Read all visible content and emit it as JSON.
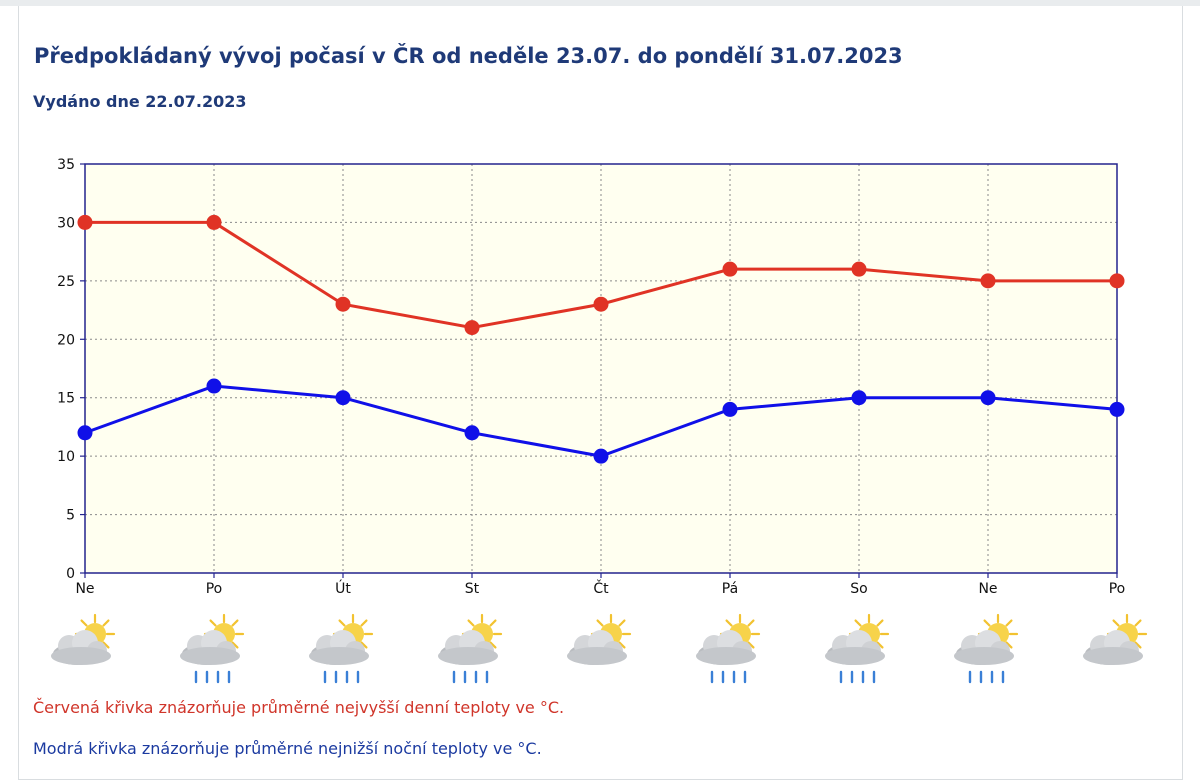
{
  "header": {
    "title": "Předpokládaný vývoj počasí v ČR od neděle 23.07. do pondělí 31.07.2023",
    "issued": "Vydáno dne 22.07.2023"
  },
  "chart_data": {
    "type": "line",
    "categories": [
      "Ne",
      "Po",
      "Út",
      "St",
      "Čt",
      "Pá",
      "So",
      "Ne",
      "Po"
    ],
    "y_ticks": [
      "0",
      "5",
      "10",
      "15",
      "20",
      "25",
      "30",
      "35"
    ],
    "ylim": [
      0,
      35
    ],
    "grid": true,
    "series": [
      {
        "values": [
          30,
          30,
          23,
          21,
          23,
          26,
          26,
          25,
          25
        ],
        "color": "#e03325"
      },
      {
        "values": [
          12,
          16,
          15,
          12,
          10,
          14,
          15,
          15,
          14
        ],
        "color": "#1010e8"
      }
    ],
    "plot_background": "#fffff0"
  },
  "weather_icons": [
    {
      "icon": "partly-cloudy-icon",
      "rain": false
    },
    {
      "icon": "partly-cloudy-rain-icon",
      "rain": true
    },
    {
      "icon": "partly-cloudy-rain-icon",
      "rain": true
    },
    {
      "icon": "partly-cloudy-rain-icon",
      "rain": true
    },
    {
      "icon": "partly-cloudy-icon",
      "rain": false
    },
    {
      "icon": "sun-cloud-rain-icon",
      "rain": true
    },
    {
      "icon": "sun-cloud-rain-icon",
      "rain": true
    },
    {
      "icon": "partly-cloudy-rain-icon",
      "rain": true
    },
    {
      "icon": "partly-cloudy-icon",
      "rain": false
    }
  ],
  "legend_notes": {
    "red": "Červená křivka znázorňuje průměrné nejvyšší denní teploty ve °C.",
    "blue": "Modrá křivka znázorňuje průměrné nejnižší noční teploty ve °C."
  }
}
